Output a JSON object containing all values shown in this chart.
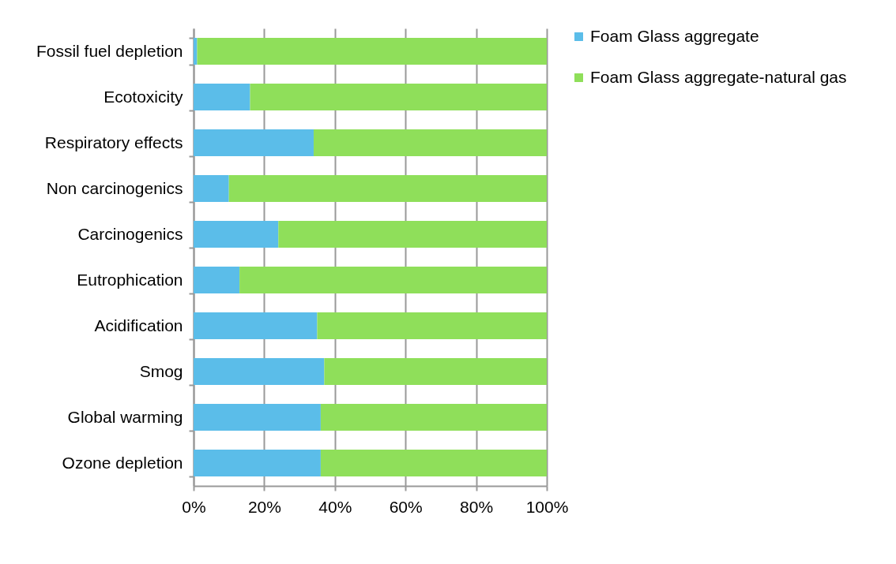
{
  "chart_data": {
    "type": "bar",
    "orientation": "horizontal",
    "stacked": true,
    "categories": [
      "Fossil fuel depletion",
      "Ecotoxicity",
      "Respiratory effects",
      "Non carcinogenics",
      "Carcinogenics",
      "Eutrophication",
      "Acidification",
      "Smog",
      "Global warming",
      "Ozone depletion"
    ],
    "series": [
      {
        "name": "Foam Glass aggregate",
        "color": "#5bbde9",
        "values": [
          1,
          16,
          34,
          10,
          24,
          13,
          35,
          37,
          36,
          36
        ]
      },
      {
        "name": "Foam Glass aggregate-natural gas",
        "color": "#8fdf5a",
        "values": [
          99,
          84,
          66,
          90,
          76,
          87,
          65,
          63,
          64,
          64
        ]
      }
    ],
    "xlim": [
      0,
      100
    ],
    "xticks": [
      {
        "value": 0,
        "label": "0%"
      },
      {
        "value": 20,
        "label": "20%"
      },
      {
        "value": 40,
        "label": "40%"
      },
      {
        "value": 60,
        "label": "60%"
      },
      {
        "value": 80,
        "label": "80%"
      },
      {
        "value": 100,
        "label": "100%"
      }
    ],
    "grid": "x",
    "legend": "right"
  }
}
